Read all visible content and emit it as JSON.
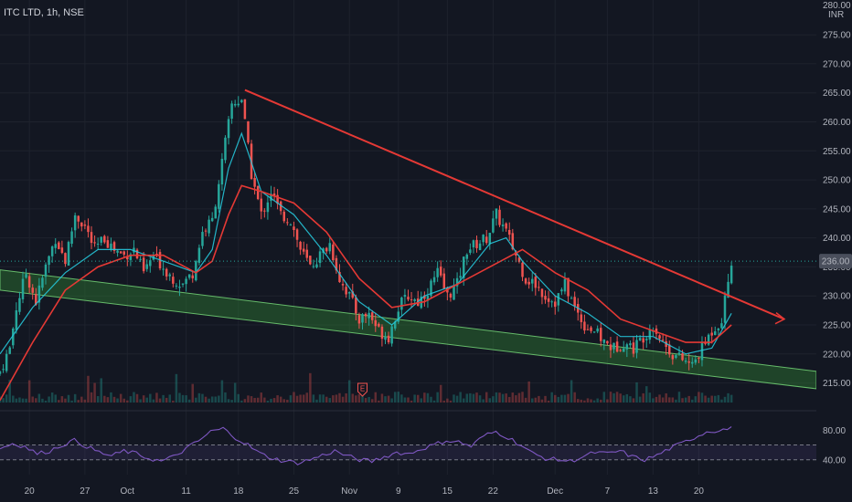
{
  "header": {
    "symbol": "ITC LTD, 1h, NSE"
  },
  "price_axis": {
    "currency": "INR",
    "top_label_partial": "280.00",
    "current_price": "236.00"
  },
  "colors": {
    "background": "#131722",
    "grid": "#1e222d",
    "up_candle": "#26a69a",
    "down_candle": "#ef5350",
    "ema_fast": "#26c6da",
    "ema_slow": "#e53935",
    "trendline": "#e53935",
    "channel_fill": "#2e7d32",
    "channel_border": "#66bb6a",
    "rsi_line": "#7e57c2",
    "rsi_band": "#7e57c2",
    "axis_text": "#b2b5be",
    "price_badge_bg": "#4a4f5c",
    "price_line": "#26a69a",
    "earnings_marker": "#ef5350"
  },
  "chart_data": [
    {
      "type": "candlestick",
      "panel": "price",
      "x_tick_labels": [
        "20",
        "27",
        "Oct",
        "11",
        "18",
        "25",
        "Nov",
        "9",
        "15",
        "22",
        "Dec",
        "7",
        "13",
        "20"
      ],
      "y_ticks": [
        215,
        220,
        225,
        230,
        235,
        240,
        245,
        250,
        255,
        260,
        265,
        270,
        275
      ],
      "y_tick_labels": [
        "215.00",
        "220.00",
        "225.00",
        "230.00",
        "235.00",
        "240.00",
        "245.00",
        "250.00",
        "255.00",
        "260.00",
        "265.00",
        "270.00",
        "275.00"
      ],
      "ylim": [
        211,
        281
      ],
      "close_path": [
        [
          0,
          217
        ],
        [
          3,
          221
        ],
        [
          5,
          228
        ],
        [
          8,
          234
        ],
        [
          11,
          229
        ],
        [
          14,
          235
        ],
        [
          17,
          240
        ],
        [
          20,
          236
        ],
        [
          23,
          244
        ],
        [
          26,
          242
        ],
        [
          29,
          238
        ],
        [
          32,
          240
        ],
        [
          35,
          238
        ],
        [
          38,
          237
        ],
        [
          41,
          238
        ],
        [
          44,
          234
        ],
        [
          47,
          237
        ],
        [
          50,
          235
        ],
        [
          53,
          233
        ],
        [
          56,
          232
        ],
        [
          59,
          234
        ],
        [
          62,
          241
        ],
        [
          65,
          243
        ],
        [
          68,
          253
        ],
        [
          71,
          263
        ],
        [
          74,
          264
        ],
        [
          77,
          251
        ],
        [
          80,
          244
        ],
        [
          83,
          248
        ],
        [
          86,
          244
        ],
        [
          89,
          243
        ],
        [
          92,
          238
        ],
        [
          95,
          235
        ],
        [
          98,
          237
        ],
        [
          101,
          239
        ],
        [
          104,
          233
        ],
        [
          107,
          230
        ],
        [
          110,
          226
        ],
        [
          113,
          227
        ],
        [
          116,
          224
        ],
        [
          119,
          223
        ],
        [
          122,
          228
        ],
        [
          125,
          230
        ],
        [
          128,
          229
        ],
        [
          131,
          231
        ],
        [
          134,
          234
        ],
        [
          137,
          230
        ],
        [
          140,
          232
        ],
        [
          143,
          238
        ],
        [
          146,
          239
        ],
        [
          149,
          240
        ],
        [
          152,
          244
        ],
        [
          155,
          241
        ],
        [
          158,
          237
        ],
        [
          161,
          233
        ],
        [
          164,
          232
        ],
        [
          167,
          230
        ],
        [
          170,
          229
        ],
        [
          173,
          232
        ],
        [
          176,
          228
        ],
        [
          179,
          225
        ],
        [
          182,
          224
        ],
        [
          185,
          222
        ],
        [
          188,
          221
        ],
        [
          191,
          222
        ],
        [
          194,
          221
        ],
        [
          197,
          223
        ],
        [
          200,
          225
        ],
        [
          203,
          222
        ],
        [
          206,
          220
        ],
        [
          209,
          219
        ],
        [
          212,
          218
        ],
        [
          215,
          221
        ],
        [
          218,
          224
        ],
        [
          221,
          226
        ],
        [
          224,
          236
        ]
      ],
      "ema_fast_path": [
        [
          0,
          220
        ],
        [
          10,
          228
        ],
        [
          20,
          234
        ],
        [
          30,
          238
        ],
        [
          40,
          238
        ],
        [
          50,
          236
        ],
        [
          60,
          234
        ],
        [
          65,
          238
        ],
        [
          70,
          252
        ],
        [
          74,
          258
        ],
        [
          80,
          248
        ],
        [
          90,
          244
        ],
        [
          100,
          237
        ],
        [
          110,
          229
        ],
        [
          120,
          225
        ],
        [
          130,
          230
        ],
        [
          140,
          232
        ],
        [
          150,
          239
        ],
        [
          155,
          240
        ],
        [
          160,
          236
        ],
        [
          170,
          230
        ],
        [
          180,
          227
        ],
        [
          190,
          223
        ],
        [
          200,
          223
        ],
        [
          210,
          220
        ],
        [
          218,
          221
        ],
        [
          224,
          227
        ]
      ],
      "ema_slow_path": [
        [
          0,
          212
        ],
        [
          10,
          222
        ],
        [
          20,
          231
        ],
        [
          30,
          235
        ],
        [
          40,
          237
        ],
        [
          50,
          237
        ],
        [
          60,
          234
        ],
        [
          65,
          236
        ],
        [
          70,
          244
        ],
        [
          74,
          249
        ],
        [
          80,
          248
        ],
        [
          90,
          246
        ],
        [
          100,
          241
        ],
        [
          110,
          233
        ],
        [
          120,
          228
        ],
        [
          130,
          229
        ],
        [
          140,
          232
        ],
        [
          150,
          235
        ],
        [
          160,
          238
        ],
        [
          170,
          234
        ],
        [
          180,
          231
        ],
        [
          190,
          226
        ],
        [
          200,
          224
        ],
        [
          210,
          222
        ],
        [
          218,
          222
        ],
        [
          224,
          225
        ]
      ],
      "trendline": {
        "start": [
          75,
          265.5
        ],
        "end": [
          250,
          226
        ]
      },
      "channel": {
        "upper": [
          [
            0,
            234.5
          ],
          [
            250,
            217
          ]
        ],
        "lower": [
          [
            0,
            231
          ],
          [
            250,
            214
          ]
        ]
      },
      "events": [
        {
          "type": "earnings",
          "label": "E",
          "x_index": 111
        }
      ]
    },
    {
      "type": "line",
      "panel": "rsi",
      "series": [
        {
          "values": [
            55,
            62,
            58,
            48,
            52,
            60,
            66,
            58,
            50,
            45,
            52,
            48,
            42,
            38,
            44,
            55,
            65,
            78,
            82,
            70,
            60,
            48,
            42,
            38,
            36,
            40,
            46,
            52,
            45,
            40,
            38,
            44,
            50,
            48,
            55,
            60,
            66,
            64,
            58,
            72,
            78,
            70,
            60,
            48,
            42,
            40,
            38,
            44,
            50,
            48,
            52,
            44,
            40,
            46,
            55,
            62,
            70,
            78,
            80,
            82
          ]
        }
      ],
      "y_tick_labels": [
        "80.00",
        "40.00"
      ],
      "y_ticks": [
        80,
        40
      ],
      "bands": [
        60,
        40
      ],
      "ylim": [
        20,
        100
      ]
    }
  ]
}
